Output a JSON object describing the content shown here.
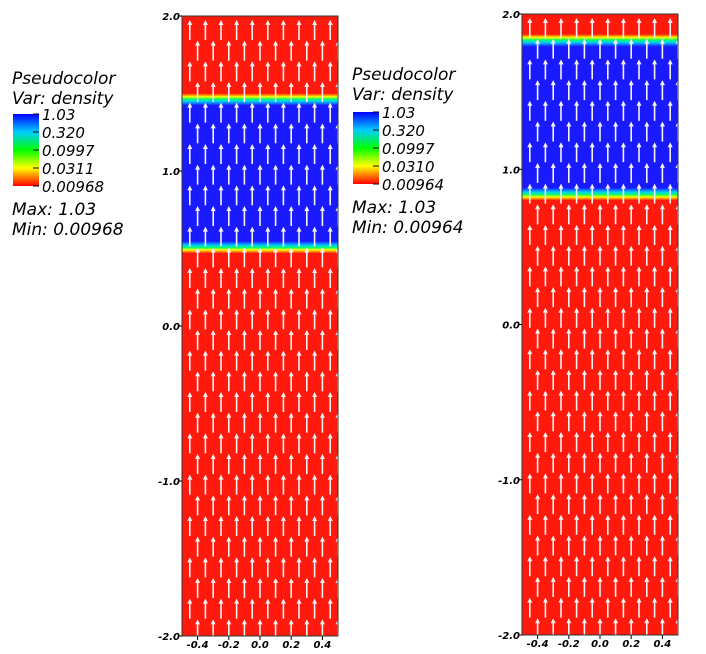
{
  "chart_data": [
    {
      "type": "heatmap",
      "variable": "density",
      "x_ticks": [
        "-0.4",
        "-0.2",
        "0.0",
        "0.2",
        "0.4"
      ],
      "y_ticks": [
        "-2.0",
        "-1.0",
        "0.0",
        "1.0",
        "2.0"
      ],
      "xlim": [
        -0.5,
        0.5
      ],
      "ylim": [
        -2.0,
        2.0
      ],
      "dense_band": [
        0.47,
        1.5
      ],
      "legend": {
        "title": "Pseudocolor",
        "var_label": "Var: density",
        "levels": [
          "1.03",
          "0.320",
          "0.0997",
          "0.0311",
          "0.00968"
        ],
        "max_label": "Max:  1.03",
        "min_label": "Min:  0.00968"
      }
    },
    {
      "type": "heatmap",
      "variable": "density",
      "x_ticks": [
        "-0.4",
        "-0.2",
        "0.0",
        "0.2",
        "0.4"
      ],
      "y_ticks": [
        "-2.0",
        "-1.0",
        "0.0",
        "1.0",
        "2.0"
      ],
      "xlim": [
        -0.5,
        0.5
      ],
      "ylim": [
        -2.0,
        2.0
      ],
      "dense_band": [
        0.8,
        1.87
      ],
      "legend": {
        "title": "Pseudocolor",
        "var_label": "Var: density",
        "levels": [
          "1.03",
          "0.320",
          "0.0997",
          "0.0310",
          "0.00964"
        ],
        "max_label": "Max:  1.03",
        "min_label": "Min:  0.00964"
      }
    }
  ],
  "colors": {
    "low": "#ff1a0d",
    "high": "#1a1aff",
    "arrow": "#f2f2f2"
  }
}
